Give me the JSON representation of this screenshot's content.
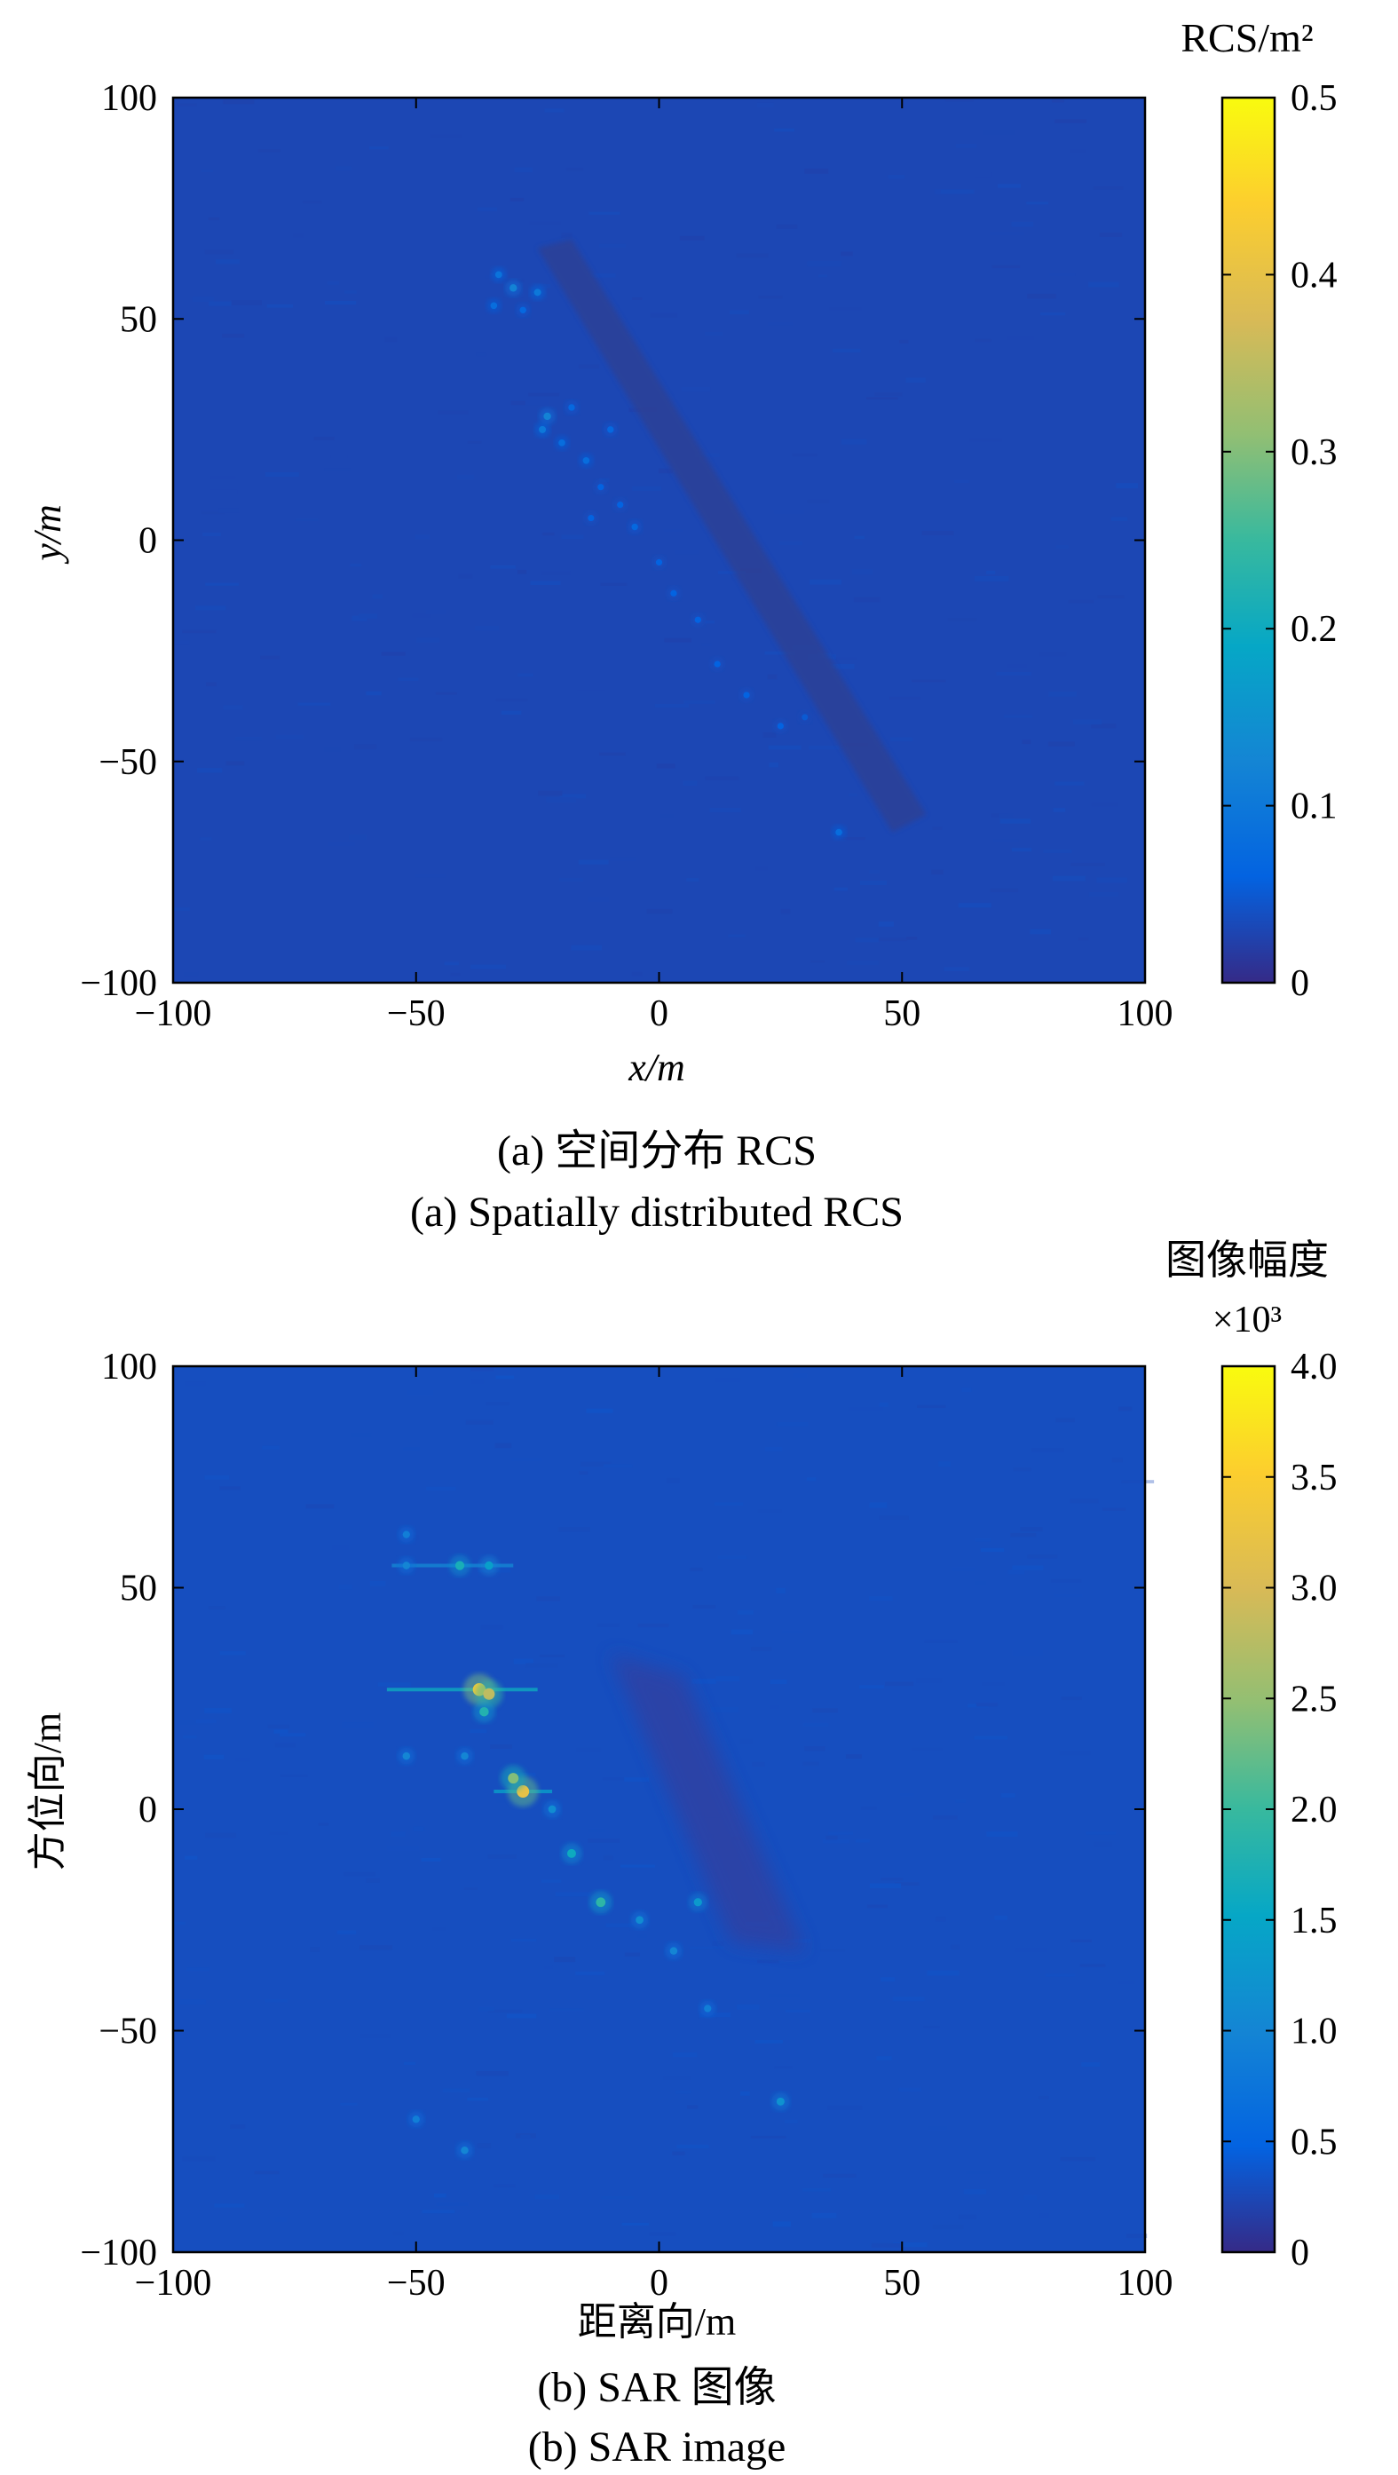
{
  "chart_data": [
    {
      "type": "heatmap",
      "id": "a",
      "caption_cn": "(a) 空间分布 RCS",
      "caption_en": "(a) Spatially distributed RCS",
      "xlabel": "x/m",
      "ylabel": "y/m",
      "xlim": [
        -100,
        100
      ],
      "ylim": [
        -100,
        100
      ],
      "xticks": [
        -100,
        -50,
        0,
        50,
        100
      ],
      "yticks": [
        -100,
        -50,
        0,
        50,
        100
      ],
      "xtick_labels": [
        "−100",
        "−50",
        "0",
        "50",
        "100"
      ],
      "ytick_labels": [
        "−100",
        "−50",
        "0",
        "50",
        "100"
      ],
      "colormap": "parula",
      "colorbar": {
        "title": "RCS/m²",
        "multiplier": "",
        "range": [
          0,
          0.5
        ],
        "ticks": [
          0,
          0.1,
          0.2,
          0.3,
          0.4,
          0.5
        ],
        "tick_labels": [
          "0",
          "0.1",
          "0.2",
          "0.3",
          "0.4",
          "0.5"
        ]
      },
      "background_value": 0.03,
      "points": [
        {
          "x": -30,
          "y": 57,
          "v": 0.12
        },
        {
          "x": -34,
          "y": 53,
          "v": 0.08
        },
        {
          "x": -33,
          "y": 60,
          "v": 0.09
        },
        {
          "x": -25,
          "y": 56,
          "v": 0.1
        },
        {
          "x": -28,
          "y": 52,
          "v": 0.07
        },
        {
          "x": -23,
          "y": 28,
          "v": 0.12
        },
        {
          "x": -24,
          "y": 25,
          "v": 0.1
        },
        {
          "x": -20,
          "y": 22,
          "v": 0.08
        },
        {
          "x": -18,
          "y": 30,
          "v": 0.07
        },
        {
          "x": -15,
          "y": 18,
          "v": 0.08
        },
        {
          "x": -12,
          "y": 12,
          "v": 0.06
        },
        {
          "x": -10,
          "y": 25,
          "v": 0.07
        },
        {
          "x": -8,
          "y": 8,
          "v": 0.06
        },
        {
          "x": -14,
          "y": 5,
          "v": 0.06
        },
        {
          "x": -5,
          "y": 3,
          "v": 0.07
        },
        {
          "x": 0,
          "y": -5,
          "v": 0.06
        },
        {
          "x": 3,
          "y": -12,
          "v": 0.06
        },
        {
          "x": 8,
          "y": -18,
          "v": 0.06
        },
        {
          "x": 12,
          "y": -28,
          "v": 0.06
        },
        {
          "x": 18,
          "y": -35,
          "v": 0.06
        },
        {
          "x": 25,
          "y": -42,
          "v": 0.06
        },
        {
          "x": 30,
          "y": -40,
          "v": 0.05
        },
        {
          "x": 37,
          "y": -66,
          "v": 0.08
        }
      ]
    },
    {
      "type": "heatmap",
      "id": "b",
      "caption_cn": "(b) SAR 图像",
      "caption_en": "(b) SAR image",
      "xlabel": "距离向/m",
      "ylabel": "方位向/m",
      "xlim": [
        -100,
        100
      ],
      "ylim": [
        -100,
        100
      ],
      "xticks": [
        -100,
        -50,
        0,
        50,
        100
      ],
      "yticks": [
        -100,
        -50,
        0,
        50,
        100
      ],
      "xtick_labels": [
        "−100",
        "−50",
        "0",
        "50",
        "100"
      ],
      "ytick_labels": [
        "−100",
        "−50",
        "0",
        "50",
        "100"
      ],
      "colormap": "parula",
      "colorbar": {
        "title": "图像幅度",
        "multiplier": "×10³",
        "range": [
          0,
          4.0
        ],
        "ticks": [
          0,
          0.5,
          1.0,
          1.5,
          2.0,
          2.5,
          3.0,
          3.5,
          4.0
        ],
        "tick_labels": [
          "0",
          "0.5",
          "1.0",
          "1.5",
          "2.0",
          "2.5",
          "3.0",
          "3.5",
          "4.0"
        ]
      },
      "background_value": 0.3,
      "points": [
        {
          "x": -37,
          "y": 27,
          "v": 3.4
        },
        {
          "x": -35,
          "y": 26,
          "v": 2.8
        },
        {
          "x": -36,
          "y": 22,
          "v": 1.8
        },
        {
          "x": -28,
          "y": 4,
          "v": 3.2
        },
        {
          "x": -30,
          "y": 7,
          "v": 2.4
        },
        {
          "x": -41,
          "y": 55,
          "v": 1.7
        },
        {
          "x": -35,
          "y": 55,
          "v": 1.4
        },
        {
          "x": -52,
          "y": 55,
          "v": 1.0
        },
        {
          "x": -52,
          "y": 62,
          "v": 0.9
        },
        {
          "x": -18,
          "y": -10,
          "v": 1.6
        },
        {
          "x": -12,
          "y": -21,
          "v": 1.9
        },
        {
          "x": 8,
          "y": -21,
          "v": 1.3
        },
        {
          "x": -4,
          "y": -25,
          "v": 1.1
        },
        {
          "x": 3,
          "y": -32,
          "v": 1.0
        },
        {
          "x": 25,
          "y": -66,
          "v": 1.2
        },
        {
          "x": -40,
          "y": -77,
          "v": 1.0
        },
        {
          "x": -50,
          "y": -70,
          "v": 0.9
        },
        {
          "x": -52,
          "y": 12,
          "v": 1.0
        },
        {
          "x": -22,
          "y": 0,
          "v": 1.1
        },
        {
          "x": -40,
          "y": 12,
          "v": 1.0
        },
        {
          "x": 10,
          "y": -45,
          "v": 0.9
        }
      ],
      "streaks": [
        {
          "y": 27,
          "x_from": -56,
          "x_to": -25,
          "v": 1.6
        },
        {
          "y": 55,
          "x_from": -55,
          "x_to": -30,
          "v": 1.0
        },
        {
          "y": 4,
          "x_from": -34,
          "x_to": -22,
          "v": 1.4
        }
      ]
    }
  ]
}
